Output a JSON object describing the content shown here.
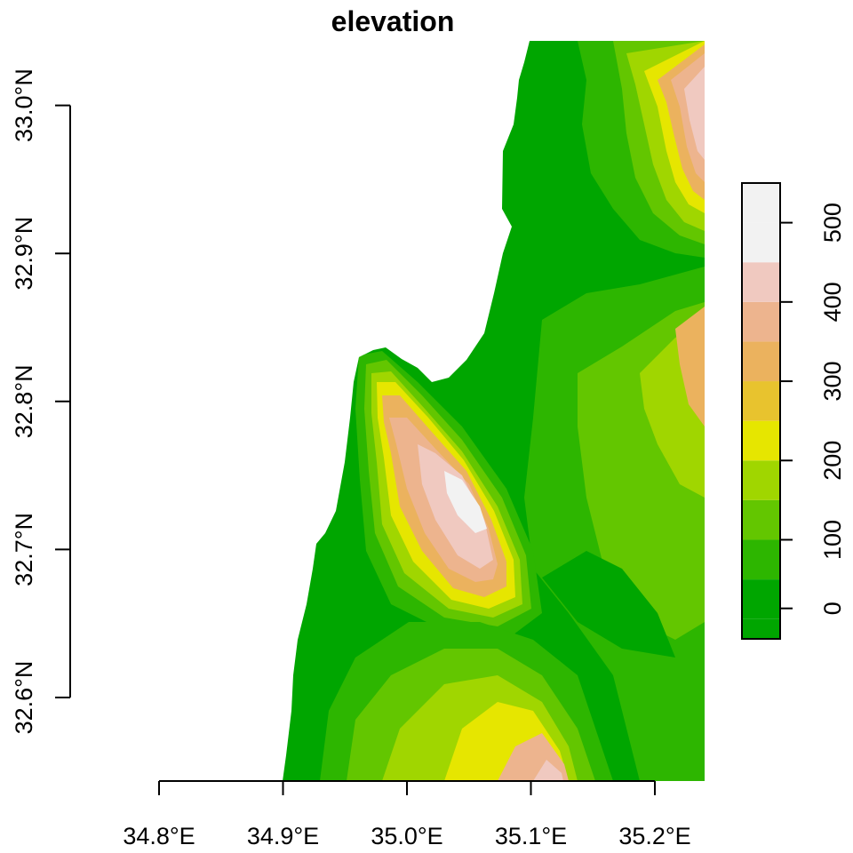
{
  "title": "elevation",
  "x_axis": {
    "ticks": [
      {
        "value": 34.8,
        "label": "34.8°E"
      },
      {
        "value": 34.9,
        "label": "34.9°E"
      },
      {
        "value": 35.0,
        "label": "35.0°E"
      },
      {
        "value": 35.1,
        "label": "35.1°E"
      },
      {
        "value": 35.2,
        "label": "35.2°E"
      }
    ]
  },
  "y_axis": {
    "ticks": [
      {
        "value": 32.6,
        "label": "32.6°N"
      },
      {
        "value": 32.7,
        "label": "32.7°N"
      },
      {
        "value": 32.8,
        "label": "32.8°N"
      },
      {
        "value": 32.9,
        "label": "32.9°N"
      },
      {
        "value": 33.0,
        "label": "33.0°N"
      }
    ]
  },
  "legend": {
    "placement": "right",
    "classes": [
      {
        "min": 0,
        "max": 50,
        "color": "#00A600"
      },
      {
        "min": 50,
        "max": 100,
        "color": "#2DB600"
      },
      {
        "min": 100,
        "max": 150,
        "color": "#63C600"
      },
      {
        "min": 150,
        "max": 200,
        "color": "#A0D600"
      },
      {
        "min": 200,
        "max": 250,
        "color": "#E6E600"
      },
      {
        "min": 250,
        "max": 300,
        "color": "#E8C32E"
      },
      {
        "min": 300,
        "max": 350,
        "color": "#EBB25E"
      },
      {
        "min": 350,
        "max": 400,
        "color": "#EDB48E"
      },
      {
        "min": 400,
        "max": 450,
        "color": "#F0C9C0"
      },
      {
        "min": 450,
        "max": 500,
        "color": "#F2F2F2"
      }
    ],
    "ticks": [
      {
        "value": 0,
        "label": "0"
      },
      {
        "value": 100,
        "label": "100"
      },
      {
        "value": 200,
        "label": "200"
      },
      {
        "value": 300,
        "label": "300"
      },
      {
        "value": 400,
        "label": "400"
      },
      {
        "value": 500,
        "label": "500"
      }
    ]
  },
  "colors": {
    "sea": "#FFFFFF",
    "lowland": "#00A600"
  }
}
